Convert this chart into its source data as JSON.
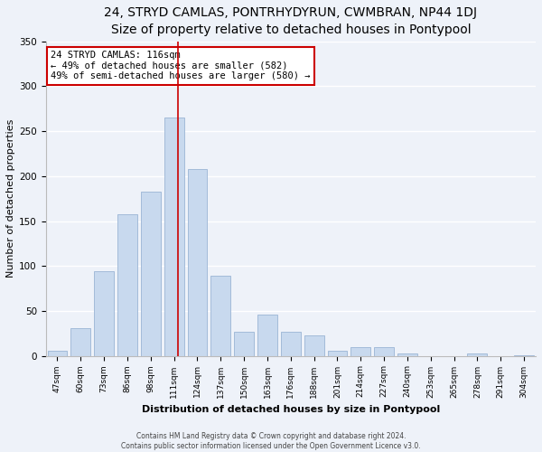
{
  "title": "24, STRYD CAMLAS, PONTRHYDYRUN, CWMBRAN, NP44 1DJ",
  "subtitle": "Size of property relative to detached houses in Pontypool",
  "xlabel": "Distribution of detached houses by size in Pontypool",
  "ylabel": "Number of detached properties",
  "bar_labels": [
    "47sqm",
    "60sqm",
    "73sqm",
    "86sqm",
    "98sqm",
    "111sqm",
    "124sqm",
    "137sqm",
    "150sqm",
    "163sqm",
    "176sqm",
    "188sqm",
    "201sqm",
    "214sqm",
    "227sqm",
    "240sqm",
    "253sqm",
    "265sqm",
    "278sqm",
    "291sqm",
    "304sqm"
  ],
  "bar_values": [
    6,
    31,
    94,
    158,
    183,
    265,
    208,
    89,
    27,
    46,
    27,
    23,
    6,
    10,
    10,
    3,
    0,
    0,
    3,
    0,
    1
  ],
  "bar_color": "#c8d9ee",
  "bar_edge_color": "#9ab4d4",
  "vline_x_index": 5,
  "vline_color": "#cc0000",
  "annotation_title": "24 STRYD CAMLAS: 116sqm",
  "annotation_line1": "← 49% of detached houses are smaller (582)",
  "annotation_line2": "49% of semi-detached houses are larger (580) →",
  "annotation_box_color": "#ffffff",
  "annotation_box_edge": "#cc0000",
  "ylim": [
    0,
    350
  ],
  "yticks": [
    0,
    50,
    100,
    150,
    200,
    250,
    300,
    350
  ],
  "footer1": "Contains HM Land Registry data © Crown copyright and database right 2024.",
  "footer2": "Contains public sector information licensed under the Open Government Licence v3.0.",
  "bg_color": "#eef2f9",
  "title_fontsize": 10,
  "subtitle_fontsize": 9,
  "xlabel_fontsize": 8,
  "ylabel_fontsize": 8
}
